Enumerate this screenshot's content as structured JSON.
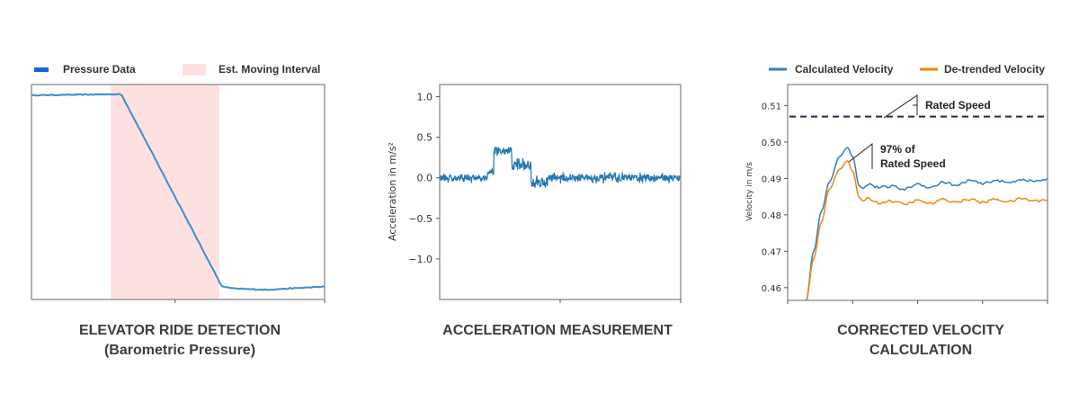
{
  "chart_data": [
    {
      "type": "line",
      "title": "ELEVATOR RIDE DETECTION",
      "subtitle": "(Barometric Pressure)",
      "legend": [
        "Pressure Data",
        "Est. Moving Interval"
      ],
      "legend_placement": "top",
      "colors": {
        "line": "#3d8dcc",
        "legend_line": "#1a5fe8",
        "band": "#fde1e1"
      },
      "x": [
        0,
        30,
        30.8,
        32,
        65,
        70,
        80,
        100
      ],
      "y": [
        0.95,
        0.955,
        0.95,
        0.92,
        0.06,
        0.05,
        0.045,
        0.06
      ],
      "xlim": [
        0,
        100
      ],
      "ylim": [
        0,
        1
      ],
      "shaded_interval": [
        27,
        64
      ],
      "xticks": [
        49,
        100
      ],
      "yticks": [],
      "grid": false
    },
    {
      "type": "line",
      "title": "ACCELERATION MEASUREMENT",
      "ylabel": "Acceleration in m/s²",
      "colors": {
        "line": "#2477b3"
      },
      "xlim": [
        0,
        100
      ],
      "ylim": [
        -1.5,
        1.15
      ],
      "yticks": [
        1.0,
        0.5,
        0.0,
        -0.5,
        -1.0
      ],
      "ytick_labels": [
        "1.0",
        "0.5",
        "0.0",
        "−0.5",
        "−1.0"
      ],
      "xticks": [
        50,
        100
      ],
      "segments": [
        {
          "x": [
            0,
            20
          ],
          "mean": 0.0,
          "noise": 0.04
        },
        {
          "x": [
            20,
            22.5
          ],
          "mean": 0.08,
          "noise": 0.05
        },
        {
          "x": [
            22.5,
            25
          ],
          "mean": 0.33,
          "noise": 0.05
        },
        {
          "x": [
            25,
            30
          ],
          "mean": 0.32,
          "noise": 0.04
        },
        {
          "x": [
            30,
            38
          ],
          "mean": 0.15,
          "noise": 0.06
        },
        {
          "x": [
            38,
            45
          ],
          "mean": -0.05,
          "noise": 0.06
        },
        {
          "x": [
            45,
            100
          ],
          "mean": 0.0,
          "noise": 0.04
        }
      ],
      "grid": false
    },
    {
      "type": "line",
      "title": "CORRECTED VELOCITY",
      "subtitle": "CALCULATION",
      "ylabel": "Velocity in m/s",
      "legend_placement": "top",
      "xlim": [
        0,
        100
      ],
      "ylim": [
        0.4565,
        0.5158
      ],
      "yticks": [
        0.51,
        0.5,
        0.49,
        0.48,
        0.47,
        0.46
      ],
      "ytick_labels": [
        "0.51",
        "0.50",
        "0.49",
        "0.48",
        "0.47",
        "0.46"
      ],
      "xticks": [
        0,
        25,
        50,
        75,
        100
      ],
      "series": [
        {
          "name": "Calculated Velocity",
          "color": "#2e7fc0",
          "x": [
            7,
            10,
            13,
            16,
            20,
            23,
            25,
            27.5,
            29,
            31,
            35,
            40,
            45,
            50,
            55,
            60,
            65,
            70,
            75,
            80,
            85,
            90,
            95,
            100
          ],
          "y": [
            0.456,
            0.47,
            0.481,
            0.489,
            0.496,
            0.4985,
            0.496,
            0.488,
            0.4873,
            0.4885,
            0.4875,
            0.4878,
            0.487,
            0.4885,
            0.4875,
            0.489,
            0.488,
            0.4895,
            0.4885,
            0.4895,
            0.4888,
            0.4898,
            0.4892,
            0.4898
          ],
          "wiggle": 0.0007
        },
        {
          "name": "De-trended Velocity",
          "color": "#f4860c",
          "x": [
            7,
            10,
            13,
            16,
            20,
            23,
            25,
            27.5,
            29,
            31,
            35,
            40,
            45,
            50,
            55,
            60,
            65,
            70,
            75,
            80,
            85,
            90,
            95,
            100
          ],
          "y": [
            0.456,
            0.468,
            0.478,
            0.487,
            0.4925,
            0.4948,
            0.492,
            0.4848,
            0.4838,
            0.4845,
            0.4833,
            0.4838,
            0.4829,
            0.4839,
            0.4831,
            0.4842,
            0.4835,
            0.4843,
            0.4834,
            0.4843,
            0.4836,
            0.4845,
            0.4838,
            0.4842
          ],
          "wiggle": 0.0007
        }
      ],
      "reference_line": {
        "value": 0.507,
        "style": "dashed",
        "color": "#1e2a4a"
      },
      "annotations": [
        {
          "text": "Rated Speed",
          "x": 35,
          "y": 0.507
        },
        {
          "text_line1": "97% of",
          "text_line2": "Rated Speed",
          "x": 23,
          "y": 0.4955
        }
      ],
      "grid": false
    }
  ]
}
